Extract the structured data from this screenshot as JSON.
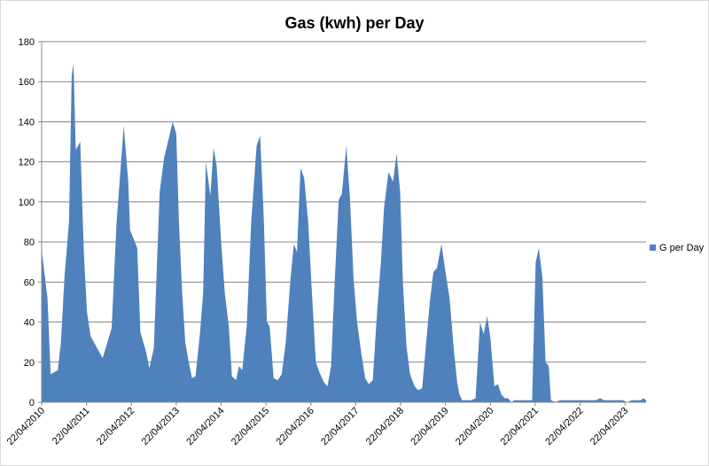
{
  "chart_data": {
    "type": "area",
    "title": "Gas (kwh) per Day",
    "xlabel": "",
    "ylabel": "",
    "ylim": [
      0,
      180
    ],
    "yticks": [
      0,
      20,
      40,
      60,
      80,
      100,
      120,
      140,
      160,
      180
    ],
    "x_ticks": [
      "22/04/2010",
      "22/04/2011",
      "22/04/2012",
      "22/04/2013",
      "22/04/2014",
      "22/04/2015",
      "22/04/2016",
      "22/04/2017",
      "22/04/2018",
      "22/04/2019",
      "22/04/2020",
      "22/04/2021",
      "22/04/2022",
      "22/04/2023"
    ],
    "x_range_years": [
      2010.31,
      2023.78
    ],
    "grid": "horizontal",
    "legend": "right",
    "color": "#4f81bd",
    "series": [
      {
        "name": "G per Day",
        "points": [
          [
            2010.31,
            76
          ],
          [
            2010.44,
            52
          ],
          [
            2010.51,
            14
          ],
          [
            2010.67,
            16
          ],
          [
            2010.74,
            30
          ],
          [
            2010.82,
            63
          ],
          [
            2010.92,
            90
          ],
          [
            2010.98,
            163
          ],
          [
            2011.02,
            169
          ],
          [
            2011.07,
            126
          ],
          [
            2011.17,
            130
          ],
          [
            2011.25,
            75
          ],
          [
            2011.32,
            45
          ],
          [
            2011.4,
            33
          ],
          [
            2011.57,
            26
          ],
          [
            2011.67,
            22
          ],
          [
            2011.87,
            37
          ],
          [
            2011.98,
            90
          ],
          [
            2012.14,
            138
          ],
          [
            2012.24,
            110
          ],
          [
            2012.28,
            86
          ],
          [
            2012.44,
            77
          ],
          [
            2012.51,
            35
          ],
          [
            2012.64,
            25
          ],
          [
            2012.71,
            17
          ],
          [
            2012.81,
            27
          ],
          [
            2012.94,
            105
          ],
          [
            2013.04,
            122
          ],
          [
            2013.23,
            140
          ],
          [
            2013.31,
            134
          ],
          [
            2013.37,
            90
          ],
          [
            2013.44,
            55
          ],
          [
            2013.51,
            30
          ],
          [
            2013.58,
            21
          ],
          [
            2013.66,
            12
          ],
          [
            2013.74,
            13
          ],
          [
            2013.84,
            35
          ],
          [
            2013.91,
            55
          ],
          [
            2013.97,
            120
          ],
          [
            2014.07,
            103
          ],
          [
            2014.14,
            127
          ],
          [
            2014.21,
            118
          ],
          [
            2014.31,
            80
          ],
          [
            2014.39,
            55
          ],
          [
            2014.48,
            38
          ],
          [
            2014.55,
            13
          ],
          [
            2014.64,
            11
          ],
          [
            2014.71,
            18
          ],
          [
            2014.78,
            16
          ],
          [
            2014.88,
            38
          ],
          [
            2014.98,
            90
          ],
          [
            2015.1,
            128
          ],
          [
            2015.18,
            133
          ],
          [
            2015.26,
            92
          ],
          [
            2015.33,
            40
          ],
          [
            2015.39,
            38
          ],
          [
            2015.48,
            12
          ],
          [
            2015.57,
            11
          ],
          [
            2015.66,
            14
          ],
          [
            2015.75,
            30
          ],
          [
            2015.85,
            60
          ],
          [
            2015.93,
            79
          ],
          [
            2016.0,
            75
          ],
          [
            2016.08,
            117
          ],
          [
            2016.16,
            112
          ],
          [
            2016.25,
            90
          ],
          [
            2016.32,
            60
          ],
          [
            2016.42,
            20
          ],
          [
            2016.5,
            15
          ],
          [
            2016.6,
            10
          ],
          [
            2016.68,
            8
          ],
          [
            2016.76,
            18
          ],
          [
            2016.84,
            60
          ],
          [
            2016.93,
            101
          ],
          [
            2017.0,
            104
          ],
          [
            2017.1,
            128
          ],
          [
            2017.18,
            102
          ],
          [
            2017.26,
            62
          ],
          [
            2017.34,
            40
          ],
          [
            2017.43,
            25
          ],
          [
            2017.52,
            12
          ],
          [
            2017.6,
            9
          ],
          [
            2017.69,
            11
          ],
          [
            2017.77,
            40
          ],
          [
            2017.87,
            70
          ],
          [
            2017.94,
            97
          ],
          [
            2018.04,
            115
          ],
          [
            2018.14,
            110
          ],
          [
            2018.22,
            124
          ],
          [
            2018.3,
            105
          ],
          [
            2018.36,
            60
          ],
          [
            2018.44,
            28
          ],
          [
            2018.52,
            14
          ],
          [
            2018.62,
            8
          ],
          [
            2018.7,
            6
          ],
          [
            2018.79,
            7
          ],
          [
            2018.88,
            30
          ],
          [
            2018.96,
            50
          ],
          [
            2019.04,
            65
          ],
          [
            2019.12,
            67
          ],
          [
            2019.22,
            79
          ],
          [
            2019.31,
            65
          ],
          [
            2019.4,
            52
          ],
          [
            2019.5,
            25
          ],
          [
            2019.57,
            10
          ],
          [
            2019.62,
            4
          ],
          [
            2019.68,
            1
          ],
          [
            2019.78,
            1
          ],
          [
            2019.88,
            1
          ],
          [
            2019.98,
            2
          ],
          [
            2020.08,
            40
          ],
          [
            2020.16,
            34
          ],
          [
            2020.24,
            43
          ],
          [
            2020.31,
            32
          ],
          [
            2020.4,
            8
          ],
          [
            2020.48,
            9
          ],
          [
            2020.55,
            4
          ],
          [
            2020.63,
            2
          ],
          [
            2020.7,
            2
          ],
          [
            2020.78,
            0
          ],
          [
            2020.84,
            1
          ],
          [
            2020.94,
            1
          ],
          [
            2021.04,
            1
          ],
          [
            2021.14,
            1
          ],
          [
            2021.24,
            1
          ],
          [
            2021.32,
            70
          ],
          [
            2021.39,
            77
          ],
          [
            2021.47,
            62
          ],
          [
            2021.54,
            20
          ],
          [
            2021.61,
            18
          ],
          [
            2021.66,
            1
          ],
          [
            2021.76,
            0
          ],
          [
            2021.86,
            1
          ],
          [
            2021.96,
            1
          ],
          [
            2022.06,
            1
          ],
          [
            2022.16,
            1
          ],
          [
            2022.26,
            1
          ],
          [
            2022.36,
            1
          ],
          [
            2022.46,
            1
          ],
          [
            2022.56,
            1
          ],
          [
            2022.66,
            1
          ],
          [
            2022.76,
            2
          ],
          [
            2022.84,
            1
          ],
          [
            2022.96,
            1
          ],
          [
            2023.06,
            1
          ],
          [
            2023.16,
            1
          ],
          [
            2023.26,
            1
          ],
          [
            2023.36,
            0
          ],
          [
            2023.46,
            1
          ],
          [
            2023.56,
            1
          ],
          [
            2023.66,
            1
          ],
          [
            2023.72,
            2
          ],
          [
            2023.78,
            1
          ]
        ]
      }
    ]
  }
}
